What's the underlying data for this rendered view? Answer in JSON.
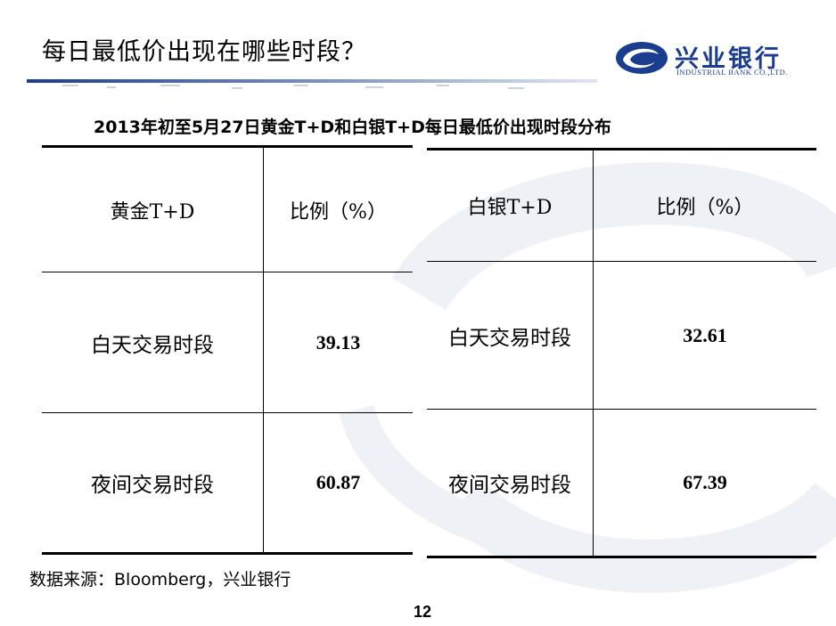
{
  "slide": {
    "title": "每日最低价出现在哪些时段？",
    "page_number": "12",
    "accent_color": "#1a3d8f"
  },
  "logo": {
    "name_cn": "兴业银行",
    "name_en": "INDUSTRIAL BANK CO.,LTD."
  },
  "subtitle": "2013年初至5月27日黄金T+D和白银T+D每日最低价出现时段分布",
  "tables": {
    "gold": {
      "headers": [
        "黄金T+D",
        "比例（%）"
      ],
      "rows": [
        {
          "label": "白天交易时段",
          "value": "39.13"
        },
        {
          "label": "夜间交易时段",
          "value": "60.87"
        }
      ]
    },
    "silver": {
      "headers": [
        "白银T+D",
        "比例（%）"
      ],
      "rows": [
        {
          "label": "白天交易时段",
          "value": "32.61"
        },
        {
          "label": "夜间交易时段",
          "value": "67.39"
        }
      ]
    }
  },
  "source": "数据来源：Bloomberg，兴业银行"
}
